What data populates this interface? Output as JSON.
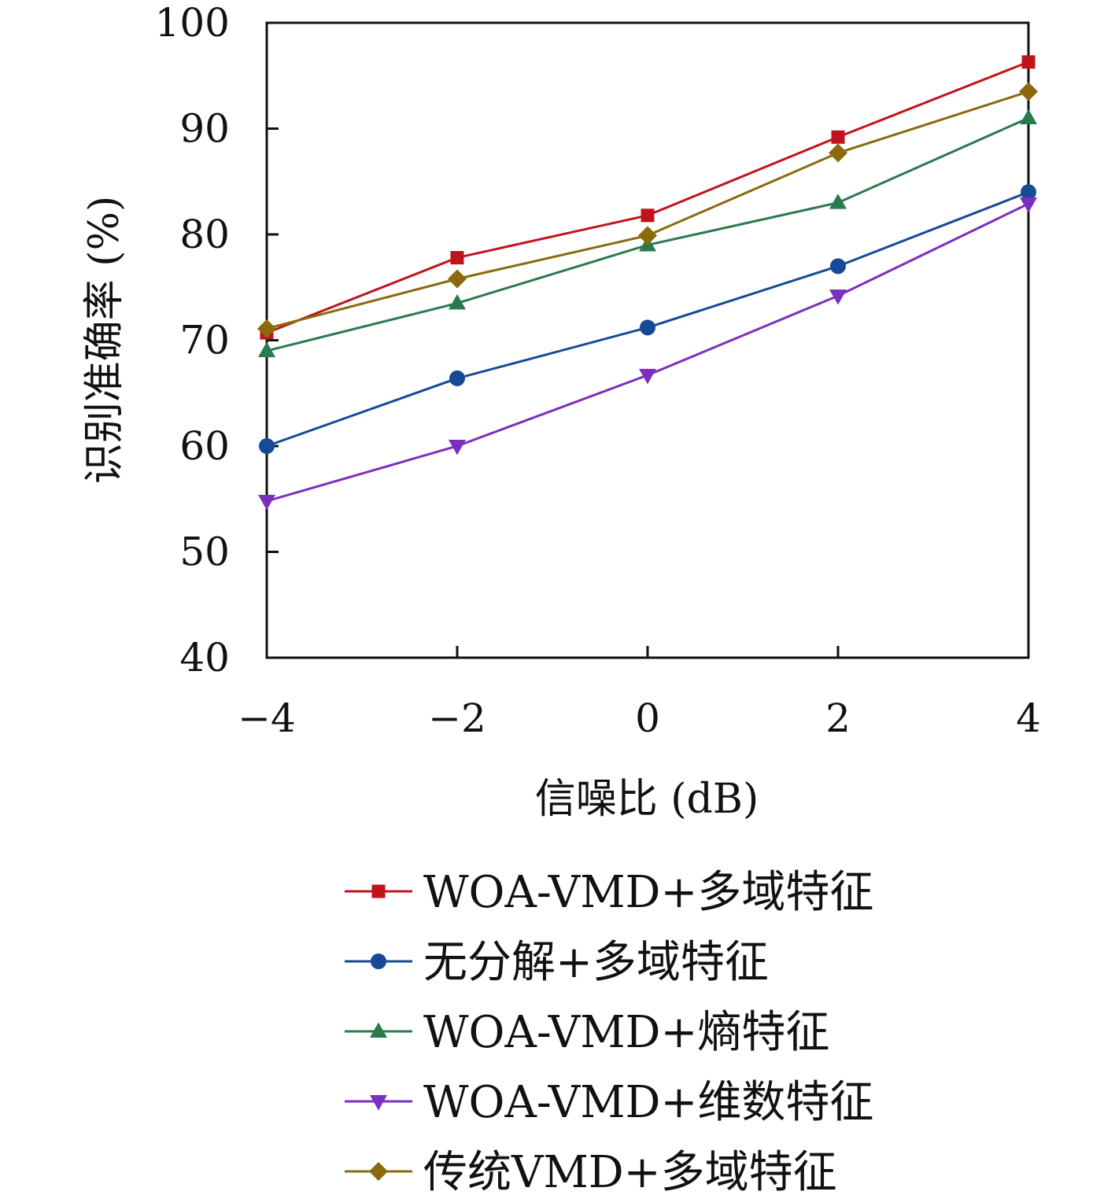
{
  "chart_data": {
    "type": "line",
    "xlabel": "信噪比 (dB)",
    "ylabel": "识别准确率 (%)",
    "x": [
      -4,
      -2,
      0,
      2,
      4
    ],
    "x_tick_labels": [
      "−4",
      "−2",
      "0",
      "2",
      "4"
    ],
    "xlim": [
      -4,
      4
    ],
    "ylim": [
      40,
      100
    ],
    "y_ticks": [
      40,
      50,
      60,
      70,
      80,
      90,
      100
    ],
    "y_tick_labels": [
      "40",
      "50",
      "60",
      "70",
      "80",
      "90",
      "100"
    ],
    "grid": false,
    "legend_position": "bottom",
    "series": [
      {
        "name": "WOA-VMD+多域特征",
        "marker": "square",
        "color": "#c0141c",
        "values": [
          70.7,
          77.8,
          81.8,
          89.2,
          96.3
        ]
      },
      {
        "name": "无分解+多域特征",
        "marker": "circle",
        "color": "#174a96",
        "values": [
          60.0,
          66.4,
          71.2,
          77.0,
          84.0
        ]
      },
      {
        "name": "WOA-VMD+熵特征",
        "marker": "triangle-up",
        "color": "#2a7a4e",
        "values": [
          69.0,
          73.5,
          79.0,
          83.0,
          91.0
        ]
      },
      {
        "name": "WOA-VMD+维数特征",
        "marker": "triangle-down",
        "color": "#7b2fbf",
        "values": [
          54.8,
          60.0,
          66.7,
          74.2,
          82.9
        ]
      },
      {
        "name": "传统VMD+多域特征",
        "marker": "diamond",
        "color": "#8a6a0c",
        "values": [
          71.1,
          75.8,
          79.9,
          87.7,
          93.5
        ]
      }
    ]
  }
}
